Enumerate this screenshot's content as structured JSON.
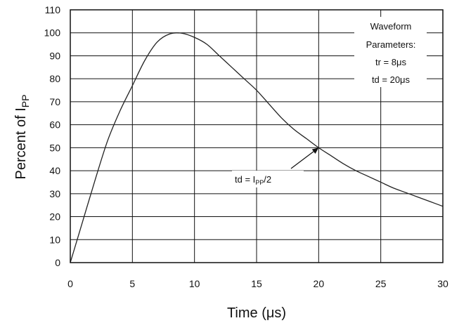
{
  "chart_data": {
    "type": "line",
    "xlabel": "Time (μs)",
    "ylabel": "Percent of I",
    "ylabel_sub": "PP",
    "xlim": [
      0,
      30
    ],
    "ylim": [
      0,
      110
    ],
    "x_ticks": [
      0,
      5,
      10,
      15,
      20,
      25,
      30
    ],
    "y_ticks": [
      0,
      10,
      20,
      30,
      40,
      50,
      60,
      70,
      80,
      90,
      100,
      110
    ],
    "grid": true,
    "series": [
      {
        "color": "#222222",
        "x": [
          0,
          1,
          2,
          3,
          4,
          5,
          6,
          7,
          8,
          9,
          10,
          11,
          12,
          13,
          14,
          15,
          16,
          17,
          18,
          19,
          20,
          21,
          22,
          23,
          24,
          25,
          26,
          27,
          28,
          29,
          30
        ],
        "y": [
          0,
          18,
          36,
          53,
          66,
          77,
          88,
          96,
          99.5,
          99.8,
          98,
          95,
          90,
          85,
          80,
          75,
          69,
          63,
          58,
          54,
          50,
          46.5,
          43,
          40,
          37.5,
          35,
          32.5,
          30.5,
          28.5,
          26.5,
          24.5
        ]
      }
    ],
    "annotations": {
      "params": {
        "line1": "Waveform",
        "line2": "Parameters:",
        "line3": "tr = 8μs",
        "line4": "td = 20μs"
      },
      "td": {
        "prefix": "td = I",
        "sub": "PP",
        "suffix": "/2",
        "point_x": 20,
        "point_y": 50
      }
    }
  }
}
